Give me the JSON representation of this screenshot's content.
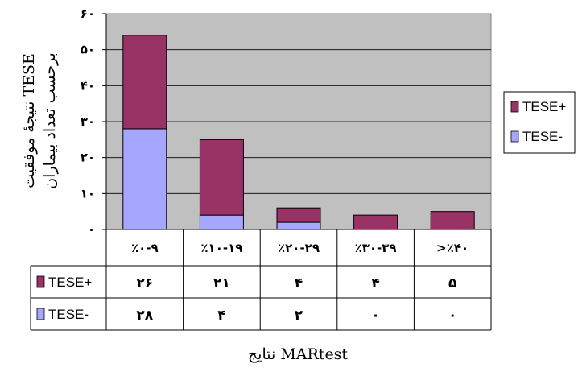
{
  "chart_data": {
    "type": "bar",
    "stacked": true,
    "categories": [
      "٪۰-۹",
      "٪۱۰-۱۹",
      "٪۲۰-۲۹",
      "٪۳۰-۳۹",
      ">٪۴۰"
    ],
    "series": [
      {
        "name": "TESE-",
        "values": [
          28,
          4,
          2,
          0,
          0
        ],
        "color": "#a6a6ff"
      },
      {
        "name": "TESE+",
        "values": [
          26,
          21,
          4,
          4,
          5
        ],
        "color": "#993366"
      }
    ],
    "table_values": {
      "TESE+": [
        "۲۶",
        "۲۱",
        "۴",
        "۴",
        "۵"
      ],
      "TESE-": [
        "۲۸",
        "۴",
        "۲",
        "۰",
        "۰"
      ]
    },
    "ylim": [
      0,
      60
    ],
    "yticks": [
      0,
      10,
      20,
      30,
      40,
      50,
      60
    ],
    "ytick_labels": [
      "۰",
      "۱۰",
      "۲۰",
      "۳۰",
      "۴۰",
      "۵۰",
      "۶۰"
    ],
    "ylabel_line1": "نتیجهٔ موفقیت TESE",
    "ylabel_line2": "برحسب تعداد بیماران",
    "xlabel": "نتایج MARtest",
    "legend": [
      "TESE+",
      "TESE-"
    ],
    "legend_position": "right",
    "grid": true,
    "plot_background": "#c0c0c0"
  }
}
